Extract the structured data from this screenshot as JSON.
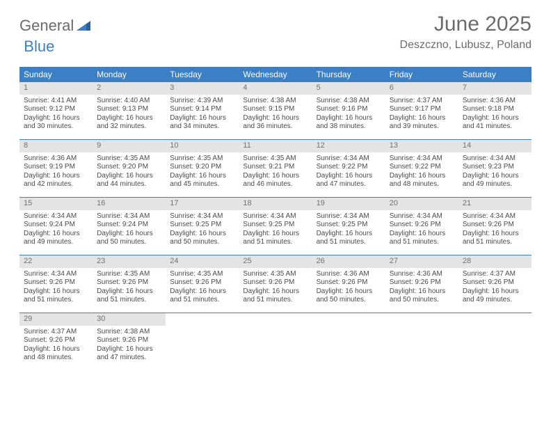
{
  "brand": {
    "word1": "General",
    "word2": "Blue",
    "accent_color": "#3b7fc4",
    "gray_color": "#6b6b6b"
  },
  "title": "June 2025",
  "location": "Deszczno, Lubusz, Poland",
  "dow": [
    "Sunday",
    "Monday",
    "Tuesday",
    "Wednesday",
    "Thursday",
    "Friday",
    "Saturday"
  ],
  "header_bg": "#3b7fc4",
  "daynum_bg": "#e4e4e4",
  "row_border": "#3b7fc4",
  "text_color": "#4a4a4a",
  "weeks": [
    [
      {
        "n": "1",
        "sunrise": "Sunrise: 4:41 AM",
        "sunset": "Sunset: 9:12 PM",
        "day1": "Daylight: 16 hours",
        "day2": "and 30 minutes."
      },
      {
        "n": "2",
        "sunrise": "Sunrise: 4:40 AM",
        "sunset": "Sunset: 9:13 PM",
        "day1": "Daylight: 16 hours",
        "day2": "and 32 minutes."
      },
      {
        "n": "3",
        "sunrise": "Sunrise: 4:39 AM",
        "sunset": "Sunset: 9:14 PM",
        "day1": "Daylight: 16 hours",
        "day2": "and 34 minutes."
      },
      {
        "n": "4",
        "sunrise": "Sunrise: 4:38 AM",
        "sunset": "Sunset: 9:15 PM",
        "day1": "Daylight: 16 hours",
        "day2": "and 36 minutes."
      },
      {
        "n": "5",
        "sunrise": "Sunrise: 4:38 AM",
        "sunset": "Sunset: 9:16 PM",
        "day1": "Daylight: 16 hours",
        "day2": "and 38 minutes."
      },
      {
        "n": "6",
        "sunrise": "Sunrise: 4:37 AM",
        "sunset": "Sunset: 9:17 PM",
        "day1": "Daylight: 16 hours",
        "day2": "and 39 minutes."
      },
      {
        "n": "7",
        "sunrise": "Sunrise: 4:36 AM",
        "sunset": "Sunset: 9:18 PM",
        "day1": "Daylight: 16 hours",
        "day2": "and 41 minutes."
      }
    ],
    [
      {
        "n": "8",
        "sunrise": "Sunrise: 4:36 AM",
        "sunset": "Sunset: 9:19 PM",
        "day1": "Daylight: 16 hours",
        "day2": "and 42 minutes."
      },
      {
        "n": "9",
        "sunrise": "Sunrise: 4:35 AM",
        "sunset": "Sunset: 9:20 PM",
        "day1": "Daylight: 16 hours",
        "day2": "and 44 minutes."
      },
      {
        "n": "10",
        "sunrise": "Sunrise: 4:35 AM",
        "sunset": "Sunset: 9:20 PM",
        "day1": "Daylight: 16 hours",
        "day2": "and 45 minutes."
      },
      {
        "n": "11",
        "sunrise": "Sunrise: 4:35 AM",
        "sunset": "Sunset: 9:21 PM",
        "day1": "Daylight: 16 hours",
        "day2": "and 46 minutes."
      },
      {
        "n": "12",
        "sunrise": "Sunrise: 4:34 AM",
        "sunset": "Sunset: 9:22 PM",
        "day1": "Daylight: 16 hours",
        "day2": "and 47 minutes."
      },
      {
        "n": "13",
        "sunrise": "Sunrise: 4:34 AM",
        "sunset": "Sunset: 9:22 PM",
        "day1": "Daylight: 16 hours",
        "day2": "and 48 minutes."
      },
      {
        "n": "14",
        "sunrise": "Sunrise: 4:34 AM",
        "sunset": "Sunset: 9:23 PM",
        "day1": "Daylight: 16 hours",
        "day2": "and 49 minutes."
      }
    ],
    [
      {
        "n": "15",
        "sunrise": "Sunrise: 4:34 AM",
        "sunset": "Sunset: 9:24 PM",
        "day1": "Daylight: 16 hours",
        "day2": "and 49 minutes."
      },
      {
        "n": "16",
        "sunrise": "Sunrise: 4:34 AM",
        "sunset": "Sunset: 9:24 PM",
        "day1": "Daylight: 16 hours",
        "day2": "and 50 minutes."
      },
      {
        "n": "17",
        "sunrise": "Sunrise: 4:34 AM",
        "sunset": "Sunset: 9:25 PM",
        "day1": "Daylight: 16 hours",
        "day2": "and 50 minutes."
      },
      {
        "n": "18",
        "sunrise": "Sunrise: 4:34 AM",
        "sunset": "Sunset: 9:25 PM",
        "day1": "Daylight: 16 hours",
        "day2": "and 51 minutes."
      },
      {
        "n": "19",
        "sunrise": "Sunrise: 4:34 AM",
        "sunset": "Sunset: 9:25 PM",
        "day1": "Daylight: 16 hours",
        "day2": "and 51 minutes."
      },
      {
        "n": "20",
        "sunrise": "Sunrise: 4:34 AM",
        "sunset": "Sunset: 9:26 PM",
        "day1": "Daylight: 16 hours",
        "day2": "and 51 minutes."
      },
      {
        "n": "21",
        "sunrise": "Sunrise: 4:34 AM",
        "sunset": "Sunset: 9:26 PM",
        "day1": "Daylight: 16 hours",
        "day2": "and 51 minutes."
      }
    ],
    [
      {
        "n": "22",
        "sunrise": "Sunrise: 4:34 AM",
        "sunset": "Sunset: 9:26 PM",
        "day1": "Daylight: 16 hours",
        "day2": "and 51 minutes."
      },
      {
        "n": "23",
        "sunrise": "Sunrise: 4:35 AM",
        "sunset": "Sunset: 9:26 PM",
        "day1": "Daylight: 16 hours",
        "day2": "and 51 minutes."
      },
      {
        "n": "24",
        "sunrise": "Sunrise: 4:35 AM",
        "sunset": "Sunset: 9:26 PM",
        "day1": "Daylight: 16 hours",
        "day2": "and 51 minutes."
      },
      {
        "n": "25",
        "sunrise": "Sunrise: 4:35 AM",
        "sunset": "Sunset: 9:26 PM",
        "day1": "Daylight: 16 hours",
        "day2": "and 51 minutes."
      },
      {
        "n": "26",
        "sunrise": "Sunrise: 4:36 AM",
        "sunset": "Sunset: 9:26 PM",
        "day1": "Daylight: 16 hours",
        "day2": "and 50 minutes."
      },
      {
        "n": "27",
        "sunrise": "Sunrise: 4:36 AM",
        "sunset": "Sunset: 9:26 PM",
        "day1": "Daylight: 16 hours",
        "day2": "and 50 minutes."
      },
      {
        "n": "28",
        "sunrise": "Sunrise: 4:37 AM",
        "sunset": "Sunset: 9:26 PM",
        "day1": "Daylight: 16 hours",
        "day2": "and 49 minutes."
      }
    ],
    [
      {
        "n": "29",
        "sunrise": "Sunrise: 4:37 AM",
        "sunset": "Sunset: 9:26 PM",
        "day1": "Daylight: 16 hours",
        "day2": "and 48 minutes."
      },
      {
        "n": "30",
        "sunrise": "Sunrise: 4:38 AM",
        "sunset": "Sunset: 9:26 PM",
        "day1": "Daylight: 16 hours",
        "day2": "and 47 minutes."
      },
      null,
      null,
      null,
      null,
      null
    ]
  ]
}
